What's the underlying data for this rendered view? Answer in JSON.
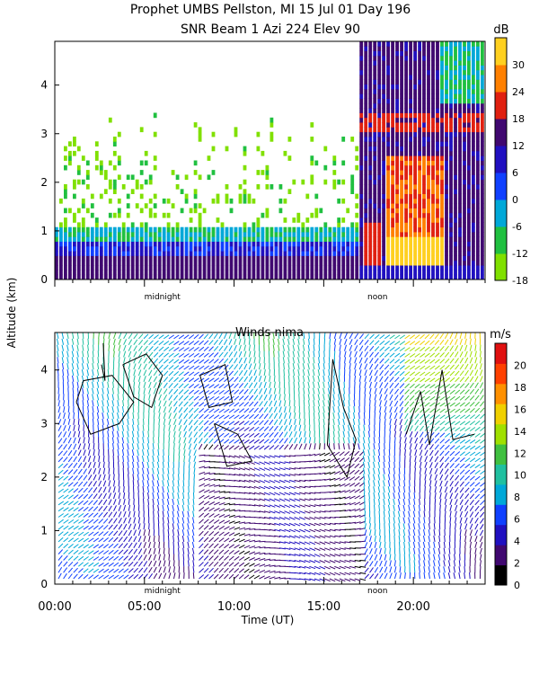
{
  "header": {
    "line1": "Prophet  UMBS Pellston, MI  15 Jul 01 Day 196",
    "line2": "SNR Beam 1 Azi 224 Elev 90"
  },
  "ylabel": "Altitude (km)",
  "xlabel": "Time (UT)",
  "chart_data": [
    {
      "type": "heatmap",
      "title": "",
      "quantity": "SNR",
      "colorbar": {
        "unit": "dB",
        "ticks": [
          "30",
          "24",
          "18",
          "12",
          "6",
          "0",
          "-6",
          "-12",
          "-18"
        ],
        "range": [
          -18,
          36
        ],
        "colors": [
          "#80e000",
          "#20c040",
          "#00a8d8",
          "#1040ff",
          "#2010c0",
          "#400870",
          "#e02010",
          "#ff8000",
          "#ffd020"
        ]
      },
      "y_ticks": [
        "0",
        "1",
        "2",
        "3",
        "4"
      ],
      "ylim": [
        0,
        4.9
      ],
      "x_marks": [
        "midnight",
        "noon"
      ],
      "xlim": [
        0,
        24
      ]
    },
    {
      "type": "heatmap",
      "title": "Winds nima",
      "quantity": "wind speed",
      "colorbar": {
        "unit": "m/s",
        "ticks": [
          "20",
          "18",
          "16",
          "14",
          "12",
          "10",
          "8",
          "6",
          "4",
          "2",
          "0"
        ],
        "range": [
          0,
          22
        ],
        "colors": [
          "#000000",
          "#400870",
          "#2010c0",
          "#1040ff",
          "#00a8d8",
          "#20c0a0",
          "#40c040",
          "#a0e000",
          "#f0d000",
          "#ff9000",
          "#ff4000",
          "#e01010"
        ]
      },
      "y_ticks": [
        "0",
        "1",
        "2",
        "3",
        "4"
      ],
      "ylim": [
        0,
        4.7
      ],
      "x_ticks": [
        "00:00",
        "05:00",
        "10:00",
        "15:00",
        "20:00"
      ],
      "x_marks": [
        "midnight",
        "noon"
      ],
      "xlim": [
        0,
        24
      ]
    }
  ]
}
